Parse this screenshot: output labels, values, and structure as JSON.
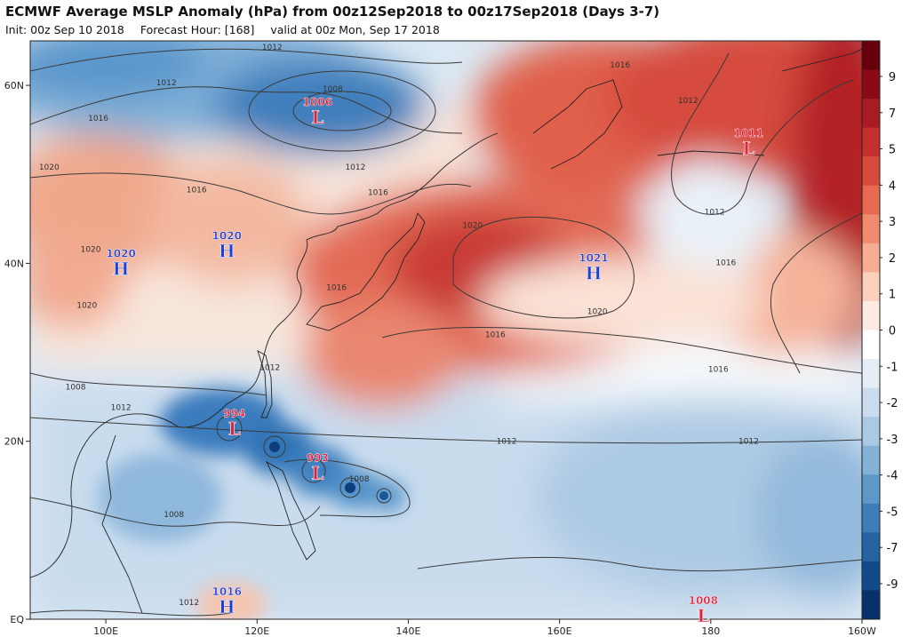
{
  "header": {
    "title": "ECMWF Average MSLP Anomaly (hPa) from 00z12Sep2018 to 00z17Sep2018 (Days 3-7)",
    "init": "Init: 00z Sep 10 2018",
    "forecast_hour": "Forecast Hour: [168]",
    "valid": "valid at 00z Mon, Sep 17 2018"
  },
  "map": {
    "lon_range": [
      90,
      200
    ],
    "lat_range": [
      0,
      65
    ],
    "lon_ticks": [
      {
        "lon": 100,
        "label": "100E"
      },
      {
        "lon": 120,
        "label": "120E"
      },
      {
        "lon": 140,
        "label": "140E"
      },
      {
        "lon": 160,
        "label": "160E"
      },
      {
        "lon": 180,
        "label": "180"
      },
      {
        "lon": 200,
        "label": "160W"
      }
    ],
    "lat_ticks": [
      {
        "lat": 0,
        "label": "EQ"
      },
      {
        "lat": 20,
        "label": "20N"
      },
      {
        "lat": 40,
        "label": "40N"
      },
      {
        "lat": 60,
        "label": "60N"
      }
    ],
    "colors": {
      "negative_strong": "#08306b",
      "negative": "#4a90c8",
      "neutral": "#ffffff",
      "positive": "#e0604a",
      "positive_strong": "#8b0014"
    },
    "pressure_systems": [
      {
        "type": "L",
        "value": "1006",
        "lon": 128,
        "lat": 56.5
      },
      {
        "type": "L",
        "value": "1011",
        "lon": 185,
        "lat": 53
      },
      {
        "type": "H",
        "value": "1020",
        "lon": 102,
        "lat": 39.5
      },
      {
        "type": "H",
        "value": "1020",
        "lon": 116,
        "lat": 41.5
      },
      {
        "type": "H",
        "value": "1021",
        "lon": 164.5,
        "lat": 39
      },
      {
        "type": "L",
        "value": "994",
        "lon": 117,
        "lat": 21.5
      },
      {
        "type": "L",
        "value": "993",
        "lon": 128,
        "lat": 16.5
      },
      {
        "type": "H",
        "value": "1016",
        "lon": 116,
        "lat": 1.5
      },
      {
        "type": "L",
        "value": "1008",
        "lon": 179,
        "lat": 0.5
      }
    ],
    "contour_labels": [
      {
        "text": "1012",
        "lon": 122,
        "lat": 64
      },
      {
        "text": "1012",
        "lon": 108,
        "lat": 60
      },
      {
        "text": "1008",
        "lon": 130,
        "lat": 59.3
      },
      {
        "text": "1016",
        "lon": 99,
        "lat": 56
      },
      {
        "text": "1016",
        "lon": 168,
        "lat": 62
      },
      {
        "text": "1012",
        "lon": 177,
        "lat": 58
      },
      {
        "text": "1012",
        "lon": 133,
        "lat": 50.5
      },
      {
        "text": "1016",
        "lon": 112,
        "lat": 48
      },
      {
        "text": "1016",
        "lon": 136,
        "lat": 47.7
      },
      {
        "text": "1020",
        "lon": 92.5,
        "lat": 50.5
      },
      {
        "text": "1020",
        "lon": 98,
        "lat": 41.3
      },
      {
        "text": "1020",
        "lon": 97.5,
        "lat": 35
      },
      {
        "text": "1020",
        "lon": 148.5,
        "lat": 44
      },
      {
        "text": "1012",
        "lon": 180.5,
        "lat": 45.5
      },
      {
        "text": "1016",
        "lon": 182,
        "lat": 39.8
      },
      {
        "text": "1016",
        "lon": 130.5,
        "lat": 37
      },
      {
        "text": "1020",
        "lon": 165,
        "lat": 34.3
      },
      {
        "text": "1016",
        "lon": 151.5,
        "lat": 31.7
      },
      {
        "text": "1012",
        "lon": 121.7,
        "lat": 28
      },
      {
        "text": "1016",
        "lon": 181,
        "lat": 27.8
      },
      {
        "text": "1012",
        "lon": 102,
        "lat": 23.5
      },
      {
        "text": "1008",
        "lon": 96,
        "lat": 25.8
      },
      {
        "text": "1012",
        "lon": 153,
        "lat": 19.7
      },
      {
        "text": "1012",
        "lon": 185,
        "lat": 19.7
      },
      {
        "text": "1008",
        "lon": 133.5,
        "lat": 15.5
      },
      {
        "text": "1008",
        "lon": 109,
        "lat": 11.5
      },
      {
        "text": "1012",
        "lon": 111,
        "lat": 1.6
      }
    ]
  },
  "colorbar": {
    "labels": [
      "9",
      "7",
      "5",
      "4",
      "3",
      "2",
      "1",
      "0",
      "-1",
      "-2",
      "-3",
      "-4",
      "-5",
      "-7",
      "-9"
    ],
    "colors": [
      "#67000d",
      "#8b0a17",
      "#a91b22",
      "#c3302e",
      "#d84a3a",
      "#e66950",
      "#f08b6d",
      "#f6ad93",
      "#fbd0bd",
      "#fdebe1",
      "#ffffff",
      "#e5eef6",
      "#cadcee",
      "#a9c9e4",
      "#84b2d7",
      "#5e98c9",
      "#3d7db8",
      "#2563a3",
      "#134b8a",
      "#08306b"
    ]
  }
}
